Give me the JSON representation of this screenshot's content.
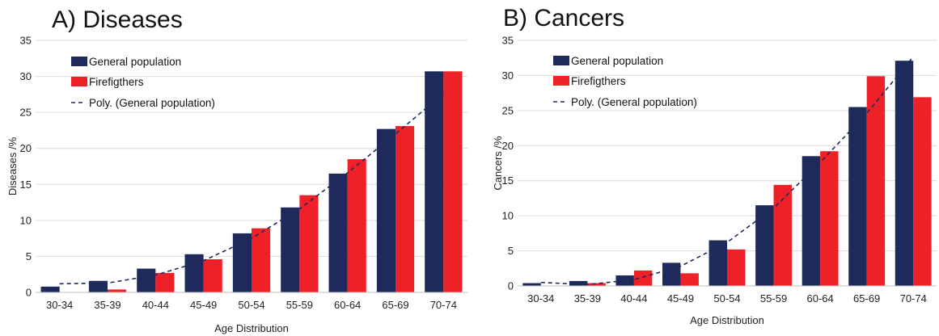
{
  "chart_data": [
    {
      "type": "bar",
      "title": "A)  Diseases",
      "xlabel": "Age Distribution",
      "ylabel": "Diseases /%",
      "ylim": [
        0,
        35
      ],
      "yticks": [
        0,
        5,
        10,
        15,
        20,
        25,
        30,
        35
      ],
      "grid": true,
      "legend_position": "top-left",
      "categories": [
        "30-34",
        "35-39",
        "40-44",
        "45-49",
        "50-54",
        "55-59",
        "60-64",
        "65-69",
        "70-74"
      ],
      "series": [
        {
          "name": "General population",
          "color": "#1f2a5c",
          "values": [
            0.8,
            1.6,
            3.3,
            5.3,
            8.2,
            11.8,
            16.5,
            22.7,
            30.7
          ]
        },
        {
          "name": "Firefigthers",
          "color": "#ee2028",
          "values": [
            0.0,
            0.4,
            2.7,
            4.6,
            8.9,
            13.5,
            18.5,
            23.1,
            30.7
          ]
        }
      ],
      "trendline": {
        "name": "Poly. (General population)",
        "color": "#1f2a5c",
        "style": "dashed",
        "values": [
          1.2,
          1.3,
          2.4,
          4.4,
          7.5,
          11.6,
          16.6,
          22.0,
          27.6
        ]
      }
    },
    {
      "type": "bar",
      "title": "B)  Cancers",
      "xlabel": "Age Distribution",
      "ylabel": "Cancers /%",
      "ylim": [
        0,
        35
      ],
      "yticks": [
        0,
        5,
        10,
        15,
        20,
        25,
        30,
        35
      ],
      "grid": true,
      "legend_position": "top-left",
      "categories": [
        "30-34",
        "35-39",
        "40-44",
        "45-49",
        "50-54",
        "55-59",
        "60-64",
        "65-69",
        "70-74"
      ],
      "series": [
        {
          "name": "General population",
          "color": "#1f2a5c",
          "values": [
            0.4,
            0.7,
            1.5,
            3.3,
            6.5,
            11.5,
            18.5,
            25.5,
            32.1
          ]
        },
        {
          "name": "Firefigthers",
          "color": "#ee2028",
          "values": [
            0.0,
            0.4,
            2.2,
            1.8,
            5.2,
            14.4,
            19.2,
            29.9,
            26.9
          ]
        }
      ],
      "trendline": {
        "name": "Poly. (General population)",
        "color": "#1f2a5c",
        "style": "dashed",
        "values": [
          0.5,
          0.2,
          0.9,
          2.8,
          6.2,
          11.1,
          17.6,
          24.6,
          32.7
        ]
      }
    }
  ]
}
